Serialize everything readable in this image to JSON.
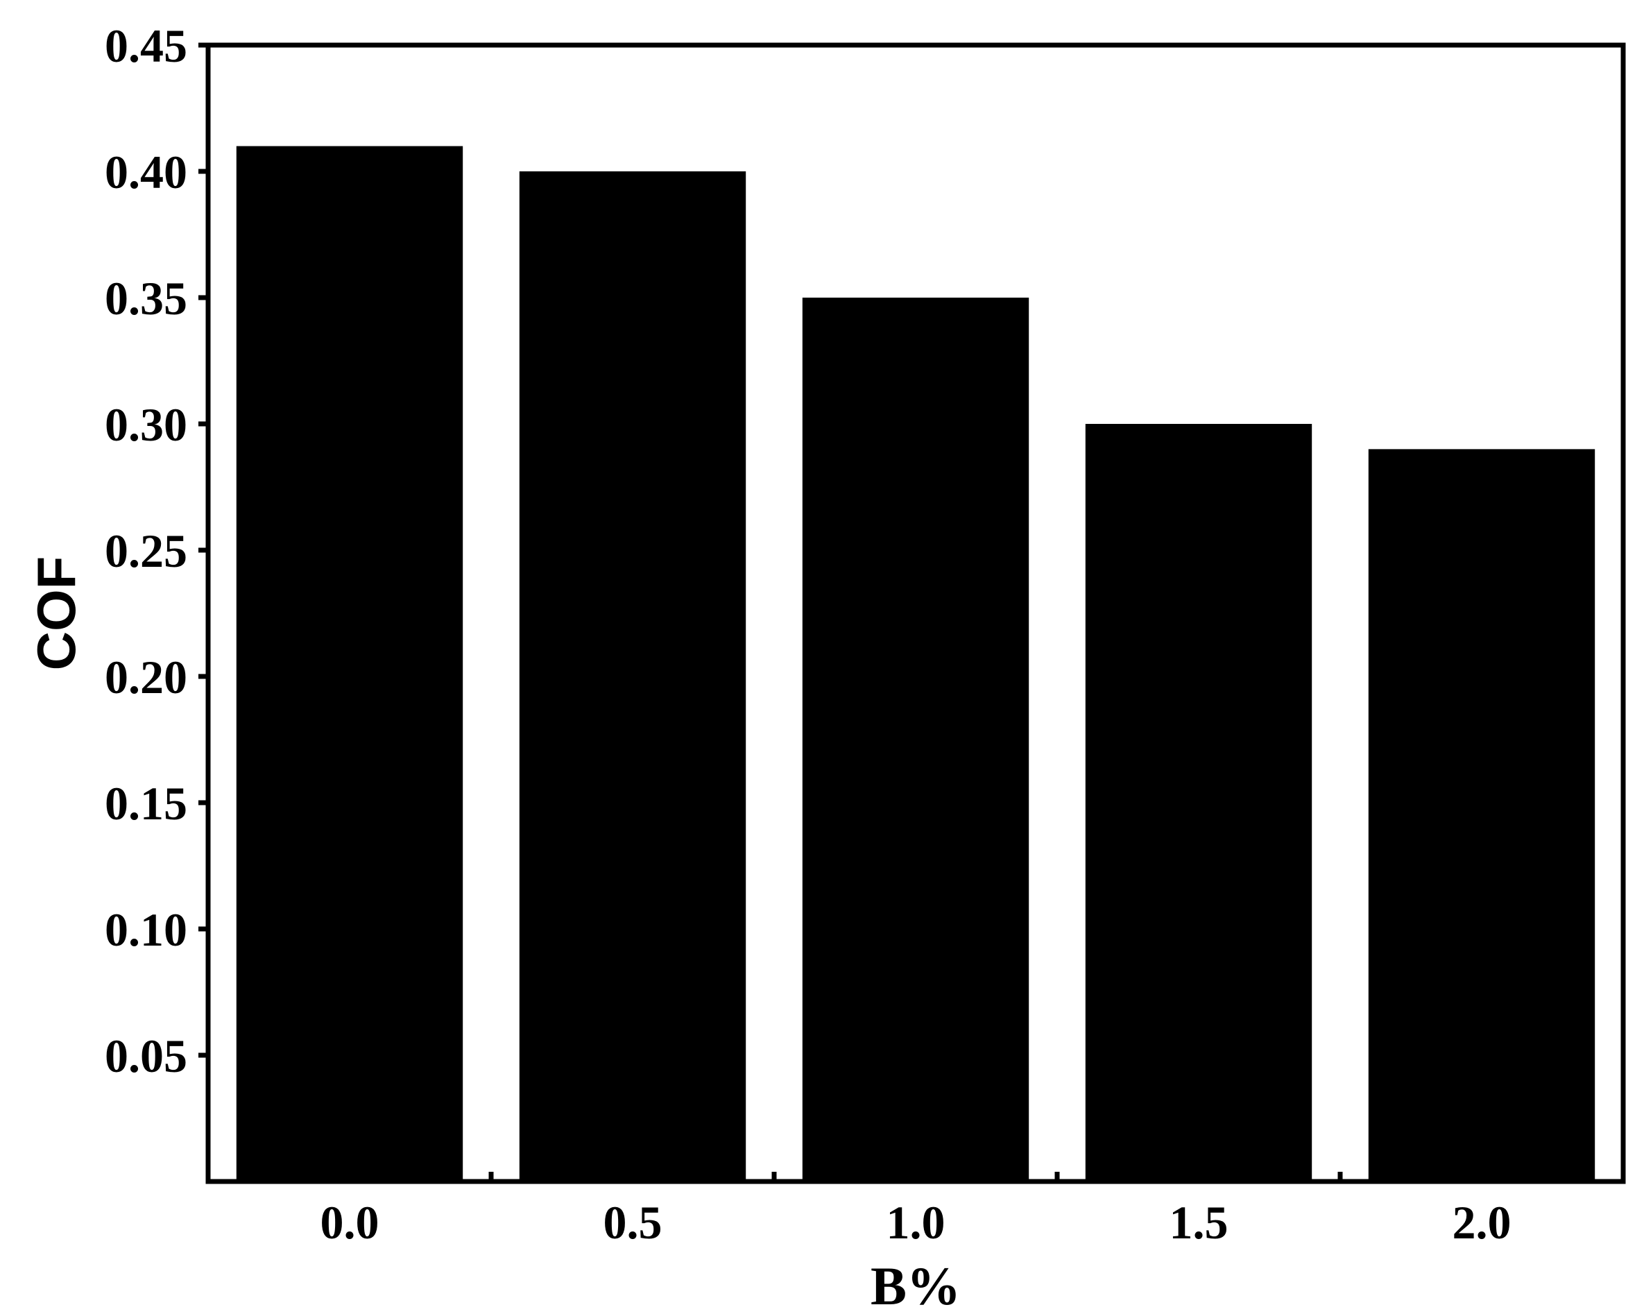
{
  "chart_data": {
    "type": "bar",
    "categories": [
      "0.0",
      "0.5",
      "1.0",
      "1.5",
      "2.0"
    ],
    "values": [
      0.41,
      0.4,
      0.35,
      0.3,
      0.29
    ],
    "title": "",
    "xlabel": "B%",
    "ylabel": "COF",
    "ylim": [
      0,
      0.45
    ],
    "yticks": [
      "0.05",
      "0.10",
      "0.15",
      "0.20",
      "0.25",
      "0.30",
      "0.35",
      "0.40",
      "0.45"
    ],
    "grid": false,
    "bar_color": "#000000"
  }
}
